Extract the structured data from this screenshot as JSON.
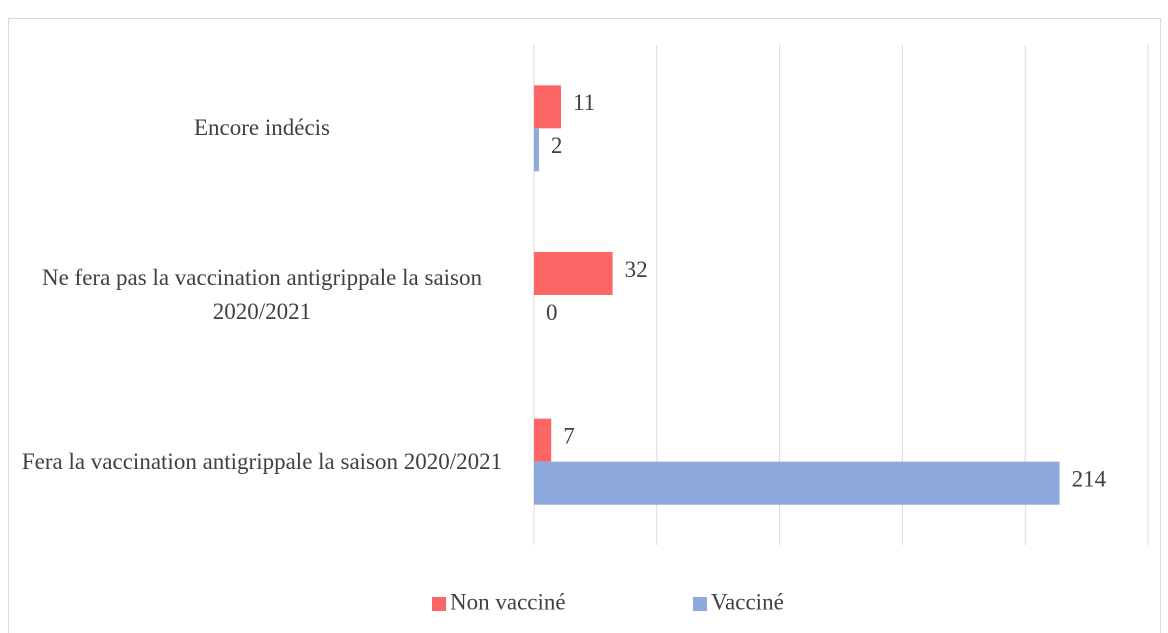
{
  "chart_data": {
    "type": "hbar",
    "categories": [
      "Encore indécis",
      "Ne fera pas la vaccination antigrippale la saison 2020/2021",
      "Fera la vaccination antigrippale la saison 2020/2021"
    ],
    "series": [
      {
        "name": "Non vacciné",
        "color": "#fe6565",
        "values": [
          11,
          32,
          7
        ]
      },
      {
        "name": "Vacciné",
        "color": "#8eaadc",
        "values": [
          2,
          0,
          214
        ]
      }
    ],
    "xlim": [
      0,
      250
    ],
    "xticks": [
      0,
      50,
      100,
      150,
      200,
      250
    ],
    "grid": true,
    "legend": "bottom"
  }
}
